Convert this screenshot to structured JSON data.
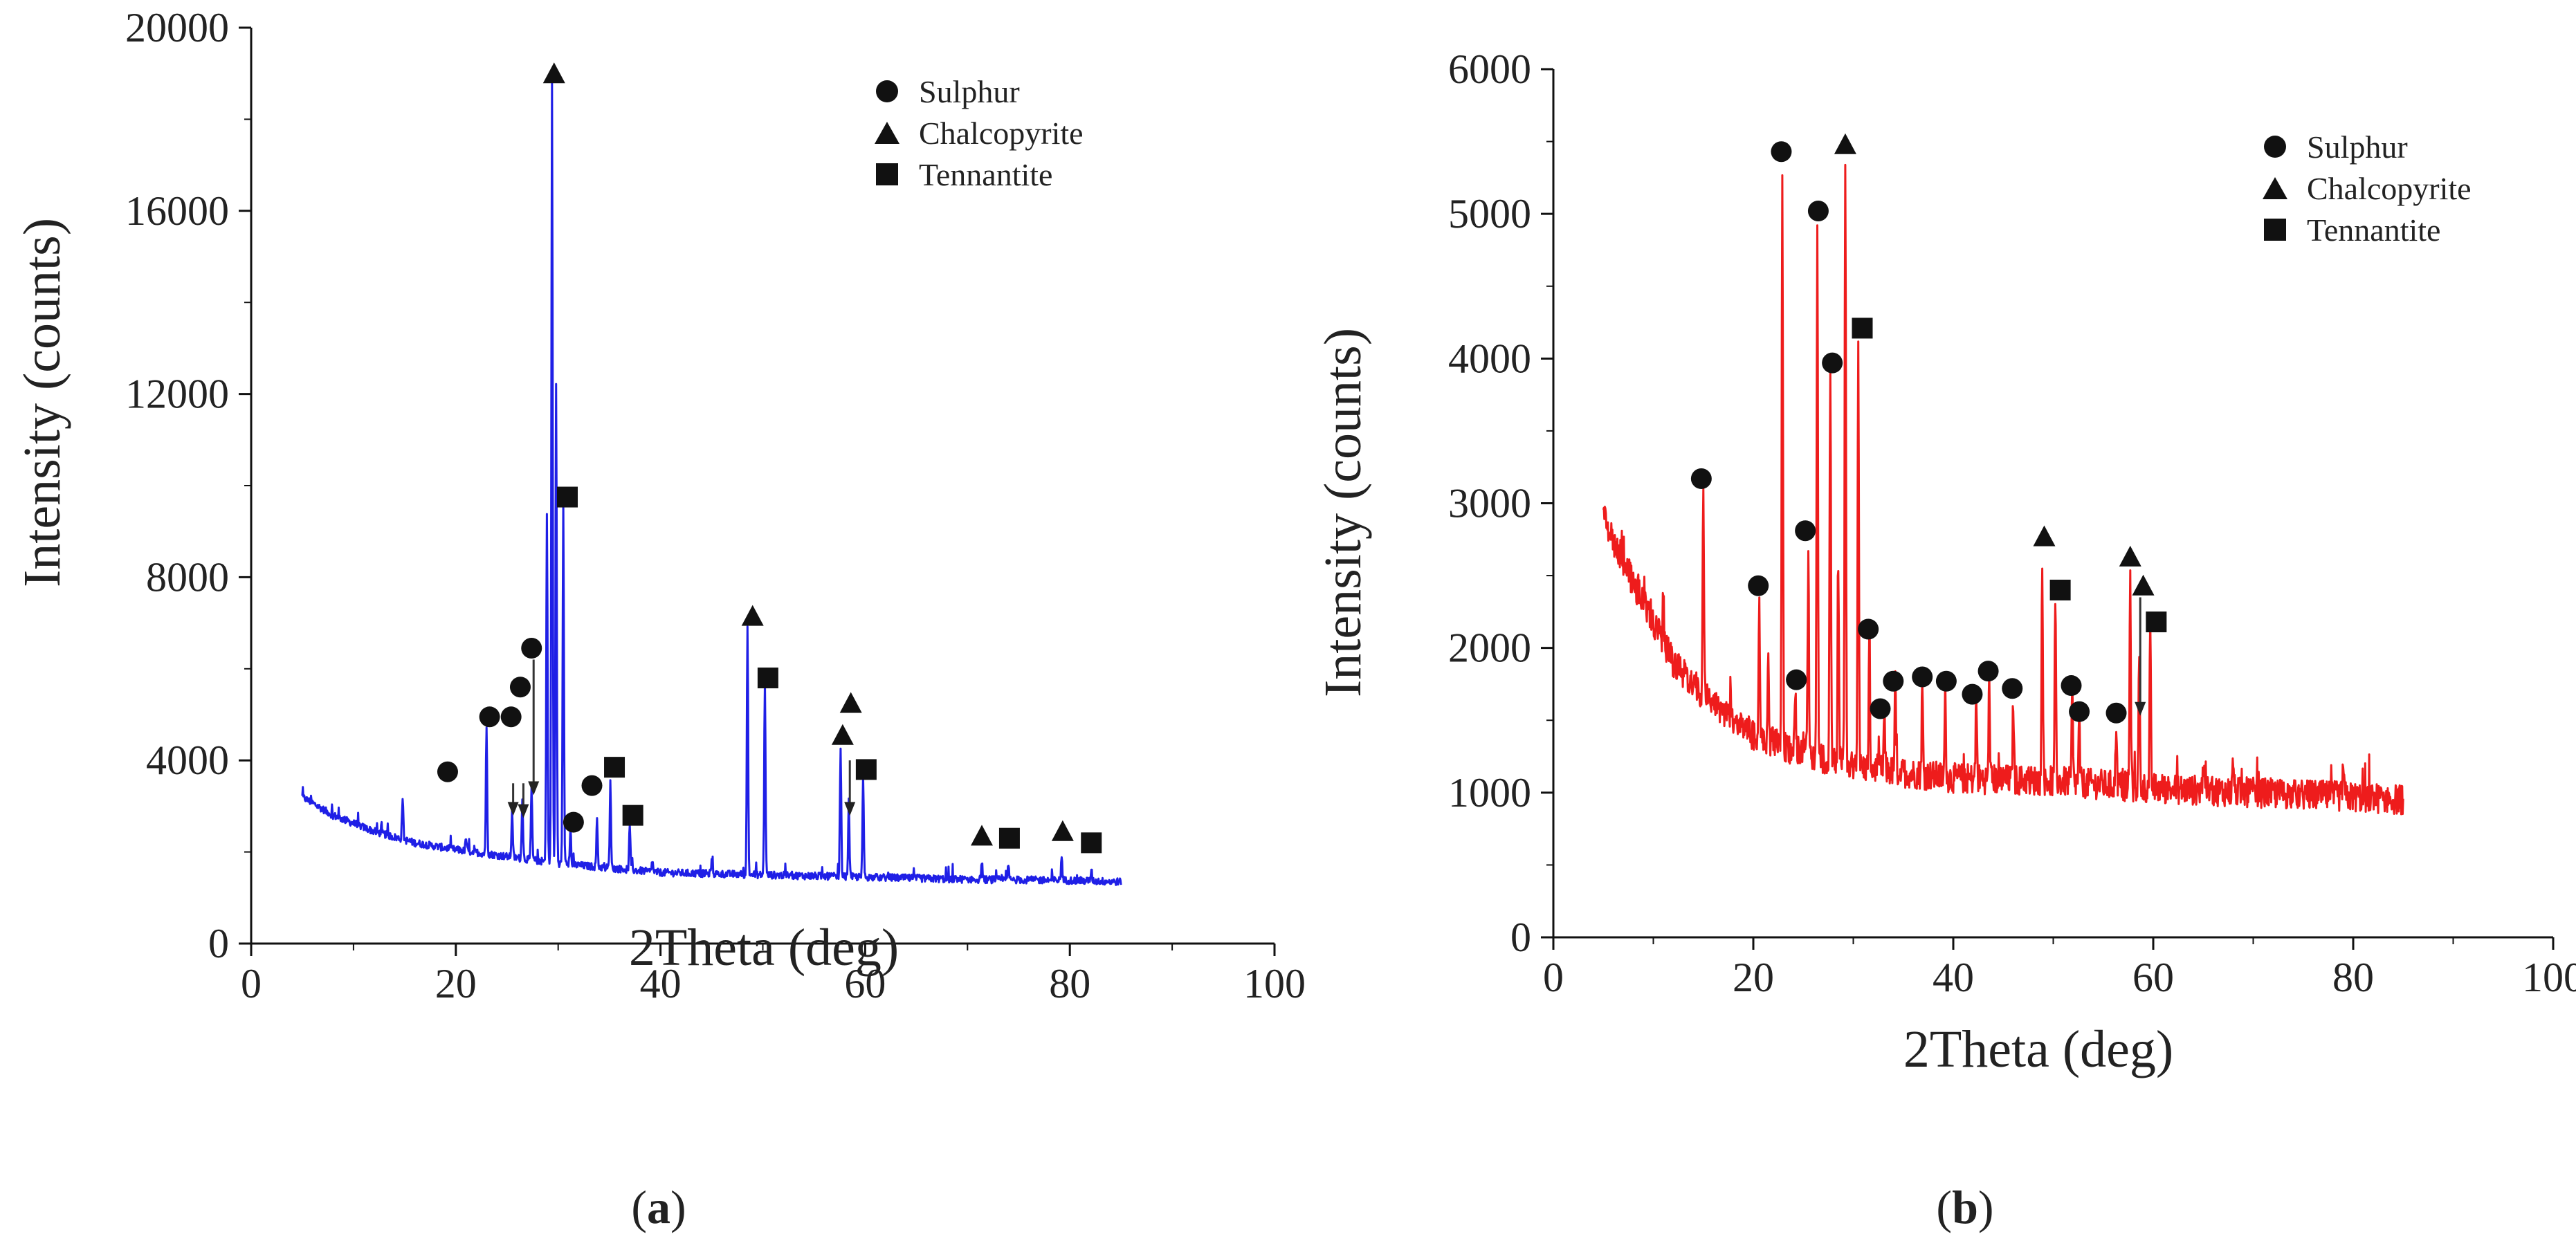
{
  "chart_data": [
    {
      "id": "a",
      "type": "line",
      "panel_label": "a",
      "line_color": "#1f1fe6",
      "xlabel": "2Theta (deg)",
      "ylabel": "Intensity (counts)",
      "xlim": [
        0,
        100
      ],
      "ylim": [
        0,
        20000
      ],
      "xticks": [
        0,
        20,
        40,
        60,
        80,
        100
      ],
      "yticks": [
        0,
        4000,
        8000,
        12000,
        16000,
        20000
      ],
      "grid": false,
      "legend_position": "top-right",
      "legend": [
        {
          "marker": "circle",
          "label": "Sulphur"
        },
        {
          "marker": "triangle",
          "label": "Chalcopyrite"
        },
        {
          "marker": "square",
          "label": "Tennantite"
        }
      ],
      "baseline": {
        "x": [
          5,
          8,
          12,
          16,
          20,
          25,
          30,
          40,
          50,
          60,
          70,
          80,
          85
        ],
        "y": [
          3200,
          2800,
          2450,
          2200,
          2050,
          1900,
          1750,
          1550,
          1500,
          1450,
          1400,
          1380,
          1350
        ]
      },
      "peaks": [
        {
          "x": 14.8,
          "y": 3200
        },
        {
          "x": 21.0,
          "y": 2300
        },
        {
          "x": 23.0,
          "y": 4700
        },
        {
          "x": 25.5,
          "y": 2900
        },
        {
          "x": 26.5,
          "y": 3200
        },
        {
          "x": 27.4,
          "y": 3400
        },
        {
          "x": 28.9,
          "y": 9400
        },
        {
          "x": 29.4,
          "y": 18800
        },
        {
          "x": 29.8,
          "y": 12200
        },
        {
          "x": 30.5,
          "y": 9600
        },
        {
          "x": 31.2,
          "y": 2500
        },
        {
          "x": 33.8,
          "y": 2700
        },
        {
          "x": 35.1,
          "y": 3500
        },
        {
          "x": 37.0,
          "y": 2600
        },
        {
          "x": 39.2,
          "y": 1800
        },
        {
          "x": 45.0,
          "y": 1800
        },
        {
          "x": 48.5,
          "y": 6900
        },
        {
          "x": 50.2,
          "y": 5700
        },
        {
          "x": 57.6,
          "y": 4300
        },
        {
          "x": 58.4,
          "y": 3100
        },
        {
          "x": 59.8,
          "y": 3600
        },
        {
          "x": 71.4,
          "y": 1800
        },
        {
          "x": 74.0,
          "y": 1700
        },
        {
          "x": 79.2,
          "y": 1900
        },
        {
          "x": 82.1,
          "y": 1600
        }
      ],
      "markers": [
        {
          "type": "circle",
          "x": 19.2,
          "y": 3750
        },
        {
          "type": "circle",
          "x": 23.3,
          "y": 4950
        },
        {
          "type": "circle",
          "x": 25.4,
          "y": 4950
        },
        {
          "type": "circle",
          "x": 26.3,
          "y": 5600
        },
        {
          "type": "circle",
          "x": 27.4,
          "y": 6450
        },
        {
          "type": "circle",
          "x": 31.5,
          "y": 2650
        },
        {
          "type": "circle",
          "x": 33.3,
          "y": 3450
        },
        {
          "type": "triangle",
          "x": 29.6,
          "y": 19000
        },
        {
          "type": "triangle",
          "x": 49.0,
          "y": 7150
        },
        {
          "type": "triangle",
          "x": 57.8,
          "y": 4550
        },
        {
          "type": "triangle",
          "x": 58.6,
          "y": 5250
        },
        {
          "type": "triangle",
          "x": 71.4,
          "y": 2350
        },
        {
          "type": "triangle",
          "x": 79.3,
          "y": 2450
        },
        {
          "type": "square",
          "x": 30.9,
          "y": 9750
        },
        {
          "type": "square",
          "x": 35.5,
          "y": 3850
        },
        {
          "type": "square",
          "x": 37.3,
          "y": 2800
        },
        {
          "type": "square",
          "x": 50.5,
          "y": 5800
        },
        {
          "type": "square",
          "x": 60.1,
          "y": 3800
        },
        {
          "type": "square",
          "x": 74.1,
          "y": 2300
        },
        {
          "type": "square",
          "x": 82.1,
          "y": 2200
        }
      ],
      "arrows": [
        {
          "x": 25.6,
          "y_from": 3500,
          "y_to": 2850
        },
        {
          "x": 26.6,
          "y_from": 3500,
          "y_to": 2800
        },
        {
          "x": 27.6,
          "y_from": 6200,
          "y_to": 3300
        },
        {
          "x": 58.5,
          "y_from": 4000,
          "y_to": 2850
        }
      ]
    },
    {
      "id": "b",
      "type": "line",
      "panel_label": "b",
      "line_color": "#ee1c1c",
      "xlabel": "2Theta (deg)",
      "ylabel": "Intensity (counts)",
      "xlim": [
        0,
        100
      ],
      "ylim": [
        0,
        6000
      ],
      "xticks": [
        0,
        20,
        40,
        60,
        80,
        100
      ],
      "yticks": [
        0,
        1000,
        2000,
        3000,
        4000,
        5000,
        6000
      ],
      "grid": false,
      "legend_position": "top-right",
      "legend": [
        {
          "marker": "circle",
          "label": "Sulphur"
        },
        {
          "marker": "triangle",
          "label": "Chalcopyrite"
        },
        {
          "marker": "square",
          "label": "Tennantite"
        }
      ],
      "baseline": {
        "x": [
          5,
          8,
          12,
          16,
          20,
          25,
          30,
          40,
          50,
          60,
          70,
          80,
          85
        ],
        "y": [
          2900,
          2450,
          1900,
          1600,
          1400,
          1270,
          1180,
          1100,
          1080,
          1030,
          1000,
          970,
          950
        ]
      },
      "peaks": [
        {
          "x": 11.0,
          "y": 2380
        },
        {
          "x": 15.0,
          "y": 3050
        },
        {
          "x": 20.6,
          "y": 2250
        },
        {
          "x": 21.5,
          "y": 1900
        },
        {
          "x": 22.9,
          "y": 5300
        },
        {
          "x": 24.2,
          "y": 1750
        },
        {
          "x": 25.5,
          "y": 2650
        },
        {
          "x": 26.4,
          "y": 4950
        },
        {
          "x": 27.7,
          "y": 3950
        },
        {
          "x": 28.5,
          "y": 2600
        },
        {
          "x": 29.2,
          "y": 5400
        },
        {
          "x": 30.5,
          "y": 4100
        },
        {
          "x": 31.6,
          "y": 2050
        },
        {
          "x": 33.1,
          "y": 1550
        },
        {
          "x": 34.2,
          "y": 1750
        },
        {
          "x": 36.9,
          "y": 1750
        },
        {
          "x": 39.2,
          "y": 1700
        },
        {
          "x": 42.3,
          "y": 1650
        },
        {
          "x": 43.6,
          "y": 1800
        },
        {
          "x": 46.0,
          "y": 1650
        },
        {
          "x": 48.9,
          "y": 2650
        },
        {
          "x": 50.2,
          "y": 2300
        },
        {
          "x": 51.9,
          "y": 1700
        },
        {
          "x": 52.6,
          "y": 1500
        },
        {
          "x": 56.3,
          "y": 1500
        },
        {
          "x": 57.7,
          "y": 2500
        },
        {
          "x": 58.6,
          "y": 1950
        },
        {
          "x": 59.7,
          "y": 2100
        },
        {
          "x": 65.0,
          "y": 1250
        },
        {
          "x": 68.0,
          "y": 1250
        },
        {
          "x": 79.0,
          "y": 1200
        }
      ],
      "markers": [
        {
          "type": "circle",
          "x": 14.8,
          "y": 3170
        },
        {
          "type": "circle",
          "x": 20.5,
          "y": 2430
        },
        {
          "type": "circle",
          "x": 22.8,
          "y": 5430
        },
        {
          "type": "circle",
          "x": 24.3,
          "y": 1780
        },
        {
          "type": "circle",
          "x": 25.2,
          "y": 2810
        },
        {
          "type": "circle",
          "x": 26.5,
          "y": 5020
        },
        {
          "type": "circle",
          "x": 27.9,
          "y": 3970
        },
        {
          "type": "circle",
          "x": 31.5,
          "y": 2130
        },
        {
          "type": "circle",
          "x": 32.7,
          "y": 1580
        },
        {
          "type": "circle",
          "x": 34.0,
          "y": 1770
        },
        {
          "type": "circle",
          "x": 36.9,
          "y": 1800
        },
        {
          "type": "circle",
          "x": 39.3,
          "y": 1770
        },
        {
          "type": "circle",
          "x": 41.9,
          "y": 1680
        },
        {
          "type": "circle",
          "x": 43.5,
          "y": 1840
        },
        {
          "type": "circle",
          "x": 45.9,
          "y": 1720
        },
        {
          "type": "circle",
          "x": 51.8,
          "y": 1740
        },
        {
          "type": "circle",
          "x": 52.6,
          "y": 1560
        },
        {
          "type": "circle",
          "x": 56.3,
          "y": 1550
        },
        {
          "type": "triangle",
          "x": 29.2,
          "y": 5480
        },
        {
          "type": "triangle",
          "x": 49.1,
          "y": 2770
        },
        {
          "type": "triangle",
          "x": 57.7,
          "y": 2630
        },
        {
          "type": "triangle",
          "x": 59.0,
          "y": 2430
        },
        {
          "type": "square",
          "x": 30.9,
          "y": 4210
        },
        {
          "type": "square",
          "x": 50.7,
          "y": 2400
        },
        {
          "type": "square",
          "x": 60.3,
          "y": 2180
        }
      ],
      "arrows": [
        {
          "x": 58.7,
          "y_from": 2350,
          "y_to": 1550
        }
      ]
    }
  ]
}
